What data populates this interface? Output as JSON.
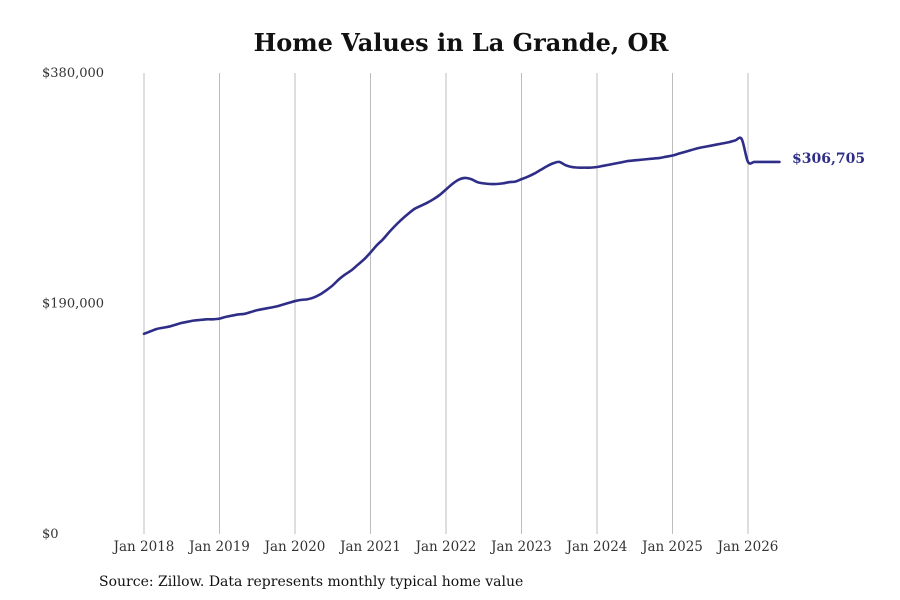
{
  "chart_data": {
    "type": "line",
    "title": "Home Values in La Grande, OR",
    "xlabel": "",
    "ylabel": "",
    "ylim": [
      0,
      380000
    ],
    "xlim": [
      "2018-01",
      "2026-06"
    ],
    "y_ticks": [
      "$0",
      "$190,000",
      "$380,000"
    ],
    "x_ticks": [
      "Jan 2018",
      "Jan 2019",
      "Jan 2020",
      "Jan 2021",
      "Jan 2022",
      "Jan 2023",
      "Jan 2024",
      "Jan 2025",
      "Jan 2026"
    ],
    "grid": "vertical",
    "line_color": "#2e2d88",
    "end_label": "$306,705",
    "series": [
      {
        "x": [
          "2018-01",
          "2018-02",
          "2018-03",
          "2018-04",
          "2018-05",
          "2018-06",
          "2018-07",
          "2018-08",
          "2018-09",
          "2018-10",
          "2018-11",
          "2018-12",
          "2019-01",
          "2019-02",
          "2019-03",
          "2019-04",
          "2019-05",
          "2019-06",
          "2019-07",
          "2019-08",
          "2019-09",
          "2019-10",
          "2019-11",
          "2019-12",
          "2020-01",
          "2020-02",
          "2020-03",
          "2020-04",
          "2020-05",
          "2020-06",
          "2020-07",
          "2020-08",
          "2020-09",
          "2020-10",
          "2020-11",
          "2020-12",
          "2021-01",
          "2021-02",
          "2021-03",
          "2021-04",
          "2021-05",
          "2021-06",
          "2021-07",
          "2021-08",
          "2021-09",
          "2021-10",
          "2021-11",
          "2021-12",
          "2022-01",
          "2022-02",
          "2022-03",
          "2022-04",
          "2022-05",
          "2022-06",
          "2022-07",
          "2022-08",
          "2022-09",
          "2022-10",
          "2022-11",
          "2022-12",
          "2023-01",
          "2023-02",
          "2023-03",
          "2023-04",
          "2023-05",
          "2023-06",
          "2023-07",
          "2023-08",
          "2023-09",
          "2023-10",
          "2023-11",
          "2023-12",
          "2024-01",
          "2024-02",
          "2024-03",
          "2024-04",
          "2024-05",
          "2024-06",
          "2024-07",
          "2024-08",
          "2024-09",
          "2024-10",
          "2024-11",
          "2024-12",
          "2025-01",
          "2025-02",
          "2025-03",
          "2025-04",
          "2025-05",
          "2025-06",
          "2025-07",
          "2025-08",
          "2025-09",
          "2025-10",
          "2025-11",
          "2025-12",
          "2026-01",
          "2026-02",
          "2026-03",
          "2026-04",
          "2026-05",
          "2026-06"
        ],
        "values": [
          165000,
          167000,
          169000,
          170000,
          171000,
          172500,
          174000,
          175000,
          176000,
          176500,
          177000,
          177000,
          177500,
          179000,
          180000,
          181000,
          181500,
          183000,
          184500,
          185500,
          186500,
          187500,
          189000,
          190500,
          192000,
          193000,
          193500,
          195000,
          197500,
          201000,
          205000,
          210000,
          214000,
          217500,
          222000,
          226500,
          232000,
          238000,
          243000,
          249000,
          254500,
          259500,
          264000,
          268000,
          270500,
          273000,
          276000,
          279500,
          284000,
          288500,
          292000,
          293500,
          292500,
          290000,
          289000,
          288500,
          288500,
          289000,
          290000,
          290500,
          292500,
          294500,
          297000,
          300000,
          303000,
          305500,
          306705,
          304000,
          302500,
          302000,
          302000,
          302000,
          302500,
          303500,
          304500,
          305500,
          306500,
          307500,
          308000,
          308500,
          309000,
          309500,
          310000,
          311000,
          312000,
          313500,
          315000,
          316500,
          318000,
          319000,
          320000,
          321000,
          322000,
          323000,
          324500,
          325500,
          306705,
          306705,
          306705,
          306705,
          306705,
          306705
        ]
      }
    ]
  },
  "source_text": "Source: Zillow. Data represents monthly typical home value"
}
